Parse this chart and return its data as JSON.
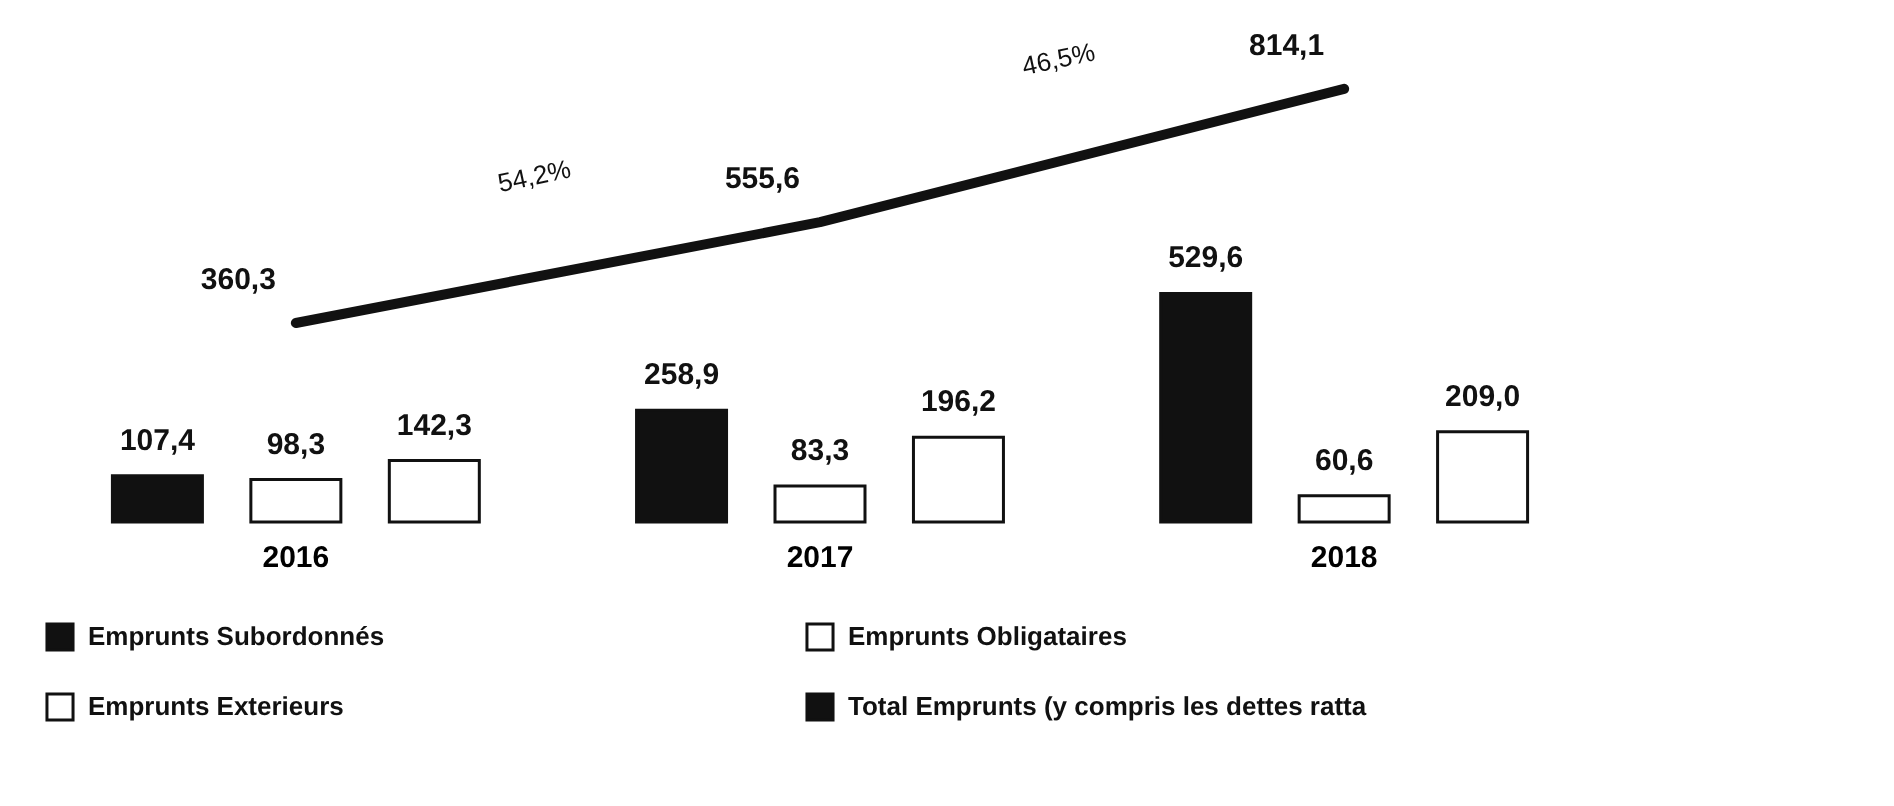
{
  "chart_data": {
    "type": "bar",
    "categories": [
      "2016",
      "2017",
      "2018"
    ],
    "series": [
      {
        "name": "Emprunts Subordonnés",
        "color": "#111111",
        "values": [
          107.4,
          258.9,
          529.6
        ],
        "value_labels": [
          "107,4",
          "258,9",
          "529,6"
        ]
      },
      {
        "name": "Emprunts Obligataires",
        "color": "#ffffff",
        "values": [
          98.3,
          83.3,
          60.6
        ],
        "value_labels": [
          "98,3",
          "83,3",
          "60,6"
        ]
      },
      {
        "name": "Emprunts Exterieurs",
        "color": "#ffffff",
        "values": [
          142.3,
          196.2,
          209.0
        ],
        "value_labels": [
          "142,3",
          "196,2",
          "209,0"
        ]
      },
      {
        "name": "Total Emprunts (y compris les dettes ratta",
        "color": "#111111",
        "type": "line",
        "axis": "y2",
        "values": [
          360.3,
          555.6,
          814.1
        ],
        "value_labels": [
          "360,3",
          "555,6",
          "814,1"
        ]
      }
    ],
    "annotations": [
      "54,2%",
      "46,5%"
    ],
    "tick_labels": "x",
    "legend": "bottom"
  }
}
